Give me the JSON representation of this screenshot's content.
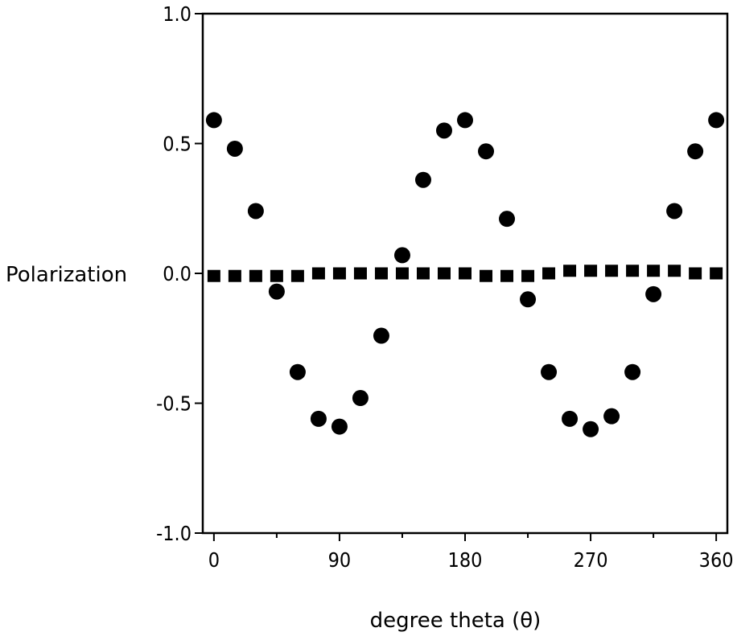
{
  "chart_data": {
    "type": "scatter",
    "xlabel": "degree theta (θ)",
    "ylabel": "Polarization",
    "xlim": [
      -8,
      368
    ],
    "ylim": [
      -1.0,
      1.0
    ],
    "x_ticks": [
      0,
      90,
      180,
      270,
      360
    ],
    "x_tick_labels": [
      "0",
      "90",
      "180",
      "270",
      "360"
    ],
    "y_ticks": [
      1.0,
      0.5,
      0.0,
      -0.5,
      -1.0
    ],
    "y_tick_labels": [
      "1.0",
      "0.5",
      "0.0",
      "-0.5",
      "-1.0"
    ],
    "grid": false,
    "legend": "none",
    "series": [
      {
        "marker": "circle",
        "x": [
          0,
          15,
          30,
          45,
          60,
          75,
          90,
          105,
          120,
          135,
          150,
          165,
          180,
          195,
          210,
          225,
          240,
          255,
          270,
          285,
          300,
          315,
          330,
          345,
          360
        ],
        "y": [
          0.59,
          0.48,
          0.24,
          -0.07,
          -0.38,
          -0.56,
          -0.59,
          -0.48,
          -0.24,
          0.07,
          0.36,
          0.55,
          0.59,
          0.47,
          0.21,
          -0.1,
          -0.38,
          -0.56,
          -0.6,
          -0.55,
          -0.38,
          -0.08,
          0.24,
          0.47,
          0.59
        ]
      },
      {
        "marker": "square",
        "x": [
          0,
          15,
          30,
          45,
          60,
          75,
          90,
          105,
          120,
          135,
          150,
          165,
          180,
          195,
          210,
          225,
          240,
          255,
          270,
          285,
          300,
          315,
          330,
          345,
          360
        ],
        "y": [
          -0.01,
          -0.01,
          -0.01,
          -0.01,
          -0.01,
          0.0,
          0.0,
          0.0,
          0.0,
          0.0,
          0.0,
          0.0,
          0.0,
          -0.01,
          -0.01,
          -0.01,
          0.0,
          0.01,
          0.01,
          0.01,
          0.01,
          0.01,
          0.01,
          0.0,
          0.0
        ]
      }
    ]
  }
}
